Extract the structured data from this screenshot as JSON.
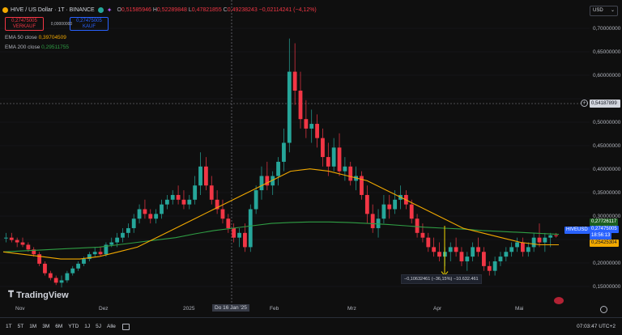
{
  "header": {
    "symbol": "HIVE / US Dollar · 1T · BINANCE",
    "o_label": "O",
    "o": "0,51585946",
    "h_label": "H",
    "h": "0,52289848",
    "l_label": "L",
    "l": "0,47821855",
    "c_label": "C",
    "c": "0,49238243",
    "change": "−0,02114241 (−4,12%)"
  },
  "trade": {
    "sell_price": "0,27475005",
    "sell_label": "VERKAUF",
    "spread": "0,00000000",
    "buy_price": "0,27475005",
    "buy_label": "KAUF"
  },
  "indicators": [
    {
      "name": "EMA 50 close",
      "value": "0,39704509",
      "color": "#f2a900"
    },
    {
      "name": "EMA 200 close",
      "value": "0,29511755",
      "color": "#2f9e44"
    }
  ],
  "currency": "USD",
  "price_axis": [
    "0,70000000",
    "0,65000000",
    "0,60000000",
    "0,55000000",
    "0,50000000",
    "0,45000000",
    "0,40000000",
    "0,35000000",
    "0,30000000",
    "0,25000000",
    "0,20000000",
    "0,15000000"
  ],
  "crosshair_price": "0,54187899",
  "badges": {
    "symbol": "HIVEUSD",
    "ema200": "0,27726117",
    "last": "0,27475005",
    "countdown": "18:56:13",
    "ema50": "0,25425304"
  },
  "time_axis": [
    "Nov",
    "Dez",
    "2025",
    "Do 16 Jan '25",
    "Feb",
    "Mrz",
    "Apr",
    "Mai"
  ],
  "measure": "−0,10632461 (−36,15%) −10.632.461",
  "logo": "TradingView",
  "ranges": [
    "1T",
    "5T",
    "1M",
    "3M",
    "6M",
    "YTD",
    "1J",
    "5J",
    "Alle"
  ],
  "clock": "07:03:47 UTC+2",
  "chart_data": {
    "type": "candlestick",
    "ylim": [
      0.15,
      0.72
    ],
    "candles": [
      [
        0.27,
        0.28,
        0.26,
        0.27
      ],
      [
        0.27,
        0.28,
        0.26,
        0.265
      ],
      [
        0.265,
        0.27,
        0.25,
        0.26
      ],
      [
        0.26,
        0.27,
        0.25,
        0.255
      ],
      [
        0.255,
        0.26,
        0.24,
        0.245
      ],
      [
        0.245,
        0.25,
        0.23,
        0.235
      ],
      [
        0.235,
        0.24,
        0.21,
        0.215
      ],
      [
        0.215,
        0.22,
        0.19,
        0.195
      ],
      [
        0.195,
        0.2,
        0.18,
        0.185
      ],
      [
        0.185,
        0.19,
        0.17,
        0.175
      ],
      [
        0.175,
        0.19,
        0.165,
        0.18
      ],
      [
        0.18,
        0.2,
        0.175,
        0.195
      ],
      [
        0.195,
        0.21,
        0.19,
        0.205
      ],
      [
        0.205,
        0.22,
        0.2,
        0.215
      ],
      [
        0.215,
        0.23,
        0.21,
        0.225
      ],
      [
        0.225,
        0.24,
        0.22,
        0.235
      ],
      [
        0.235,
        0.25,
        0.23,
        0.24
      ],
      [
        0.24,
        0.25,
        0.23,
        0.235
      ],
      [
        0.235,
        0.26,
        0.23,
        0.255
      ],
      [
        0.255,
        0.27,
        0.25,
        0.26
      ],
      [
        0.26,
        0.28,
        0.25,
        0.27
      ],
      [
        0.27,
        0.29,
        0.26,
        0.28
      ],
      [
        0.28,
        0.3,
        0.27,
        0.29
      ],
      [
        0.29,
        0.32,
        0.28,
        0.31
      ],
      [
        0.31,
        0.34,
        0.3,
        0.33
      ],
      [
        0.33,
        0.35,
        0.31,
        0.32
      ],
      [
        0.32,
        0.33,
        0.3,
        0.31
      ],
      [
        0.31,
        0.33,
        0.3,
        0.32
      ],
      [
        0.32,
        0.35,
        0.31,
        0.34
      ],
      [
        0.34,
        0.36,
        0.33,
        0.35
      ],
      [
        0.35,
        0.37,
        0.34,
        0.36
      ],
      [
        0.36,
        0.38,
        0.34,
        0.35
      ],
      [
        0.35,
        0.37,
        0.33,
        0.34
      ],
      [
        0.34,
        0.36,
        0.33,
        0.35
      ],
      [
        0.35,
        0.4,
        0.34,
        0.38
      ],
      [
        0.38,
        0.45,
        0.36,
        0.42
      ],
      [
        0.42,
        0.44,
        0.37,
        0.38
      ],
      [
        0.38,
        0.4,
        0.34,
        0.35
      ],
      [
        0.35,
        0.37,
        0.32,
        0.33
      ],
      [
        0.33,
        0.35,
        0.3,
        0.31
      ],
      [
        0.31,
        0.32,
        0.28,
        0.29
      ],
      [
        0.29,
        0.3,
        0.26,
        0.27
      ],
      [
        0.27,
        0.29,
        0.25,
        0.28
      ],
      [
        0.28,
        0.3,
        0.24,
        0.25
      ],
      [
        0.25,
        0.34,
        0.24,
        0.33
      ],
      [
        0.33,
        0.38,
        0.32,
        0.37
      ],
      [
        0.37,
        0.42,
        0.35,
        0.4
      ],
      [
        0.4,
        0.43,
        0.37,
        0.38
      ],
      [
        0.38,
        0.41,
        0.36,
        0.4
      ],
      [
        0.4,
        0.44,
        0.38,
        0.43
      ],
      [
        0.43,
        0.5,
        0.41,
        0.47
      ],
      [
        0.47,
        0.69,
        0.45,
        0.62
      ],
      [
        0.62,
        0.68,
        0.55,
        0.58
      ],
      [
        0.58,
        0.62,
        0.5,
        0.52
      ],
      [
        0.52,
        0.56,
        0.48,
        0.5
      ],
      [
        0.5,
        0.54,
        0.47,
        0.51
      ],
      [
        0.51,
        0.53,
        0.46,
        0.48
      ],
      [
        0.48,
        0.5,
        0.42,
        0.44
      ],
      [
        0.44,
        0.47,
        0.4,
        0.42
      ],
      [
        0.42,
        0.48,
        0.41,
        0.46
      ],
      [
        0.46,
        0.49,
        0.4,
        0.41
      ],
      [
        0.41,
        0.44,
        0.39,
        0.42
      ],
      [
        0.42,
        0.43,
        0.38,
        0.39
      ],
      [
        0.39,
        0.42,
        0.37,
        0.4
      ],
      [
        0.4,
        0.41,
        0.35,
        0.36
      ],
      [
        0.36,
        0.38,
        0.3,
        0.32
      ],
      [
        0.32,
        0.34,
        0.28,
        0.29
      ],
      [
        0.29,
        0.33,
        0.27,
        0.31
      ],
      [
        0.31,
        0.36,
        0.3,
        0.34
      ],
      [
        0.34,
        0.36,
        0.31,
        0.33
      ],
      [
        0.33,
        0.37,
        0.32,
        0.35
      ],
      [
        0.35,
        0.38,
        0.33,
        0.36
      ],
      [
        0.36,
        0.37,
        0.33,
        0.34
      ],
      [
        0.34,
        0.35,
        0.3,
        0.31
      ],
      [
        0.31,
        0.32,
        0.27,
        0.28
      ],
      [
        0.28,
        0.3,
        0.26,
        0.27
      ],
      [
        0.27,
        0.28,
        0.24,
        0.25
      ],
      [
        0.25,
        0.27,
        0.23,
        0.24
      ],
      [
        0.24,
        0.26,
        0.22,
        0.23
      ],
      [
        0.23,
        0.25,
        0.21,
        0.24
      ],
      [
        0.24,
        0.26,
        0.22,
        0.25
      ],
      [
        0.25,
        0.27,
        0.23,
        0.24
      ],
      [
        0.24,
        0.25,
        0.21,
        0.22
      ],
      [
        0.22,
        0.24,
        0.2,
        0.23
      ],
      [
        0.23,
        0.26,
        0.22,
        0.25
      ],
      [
        0.25,
        0.27,
        0.23,
        0.24
      ],
      [
        0.24,
        0.25,
        0.2,
        0.21
      ],
      [
        0.21,
        0.22,
        0.19,
        0.2
      ],
      [
        0.2,
        0.23,
        0.19,
        0.22
      ],
      [
        0.22,
        0.24,
        0.21,
        0.23
      ],
      [
        0.23,
        0.25,
        0.22,
        0.24
      ],
      [
        0.24,
        0.26,
        0.23,
        0.25
      ],
      [
        0.25,
        0.27,
        0.24,
        0.26
      ],
      [
        0.26,
        0.27,
        0.23,
        0.24
      ],
      [
        0.24,
        0.26,
        0.23,
        0.25
      ],
      [
        0.25,
        0.28,
        0.24,
        0.27
      ],
      [
        0.27,
        0.3,
        0.25,
        0.26
      ],
      [
        0.26,
        0.28,
        0.24,
        0.27
      ],
      [
        0.27,
        0.28,
        0.25,
        0.275
      ],
      [
        0.275,
        0.28,
        0.27,
        0.27475
      ]
    ],
    "ema50": [
      0.24,
      0.235,
      0.23,
      0.225,
      0.225,
      0.23,
      0.24,
      0.25,
      0.27,
      0.29,
      0.31,
      0.33,
      0.35,
      0.37,
      0.39,
      0.41,
      0.415,
      0.41,
      0.4,
      0.39,
      0.37,
      0.35,
      0.33,
      0.31,
      0.29,
      0.28,
      0.27,
      0.26,
      0.255,
      0.255
    ],
    "ema200": [
      0.24,
      0.242,
      0.244,
      0.246,
      0.248,
      0.25,
      0.255,
      0.26,
      0.265,
      0.27,
      0.278,
      0.285,
      0.29,
      0.295,
      0.3,
      0.302,
      0.303,
      0.303,
      0.302,
      0.3,
      0.298,
      0.295,
      0.292,
      0.29,
      0.288,
      0.285,
      0.283,
      0.281,
      0.279,
      0.277
    ]
  }
}
